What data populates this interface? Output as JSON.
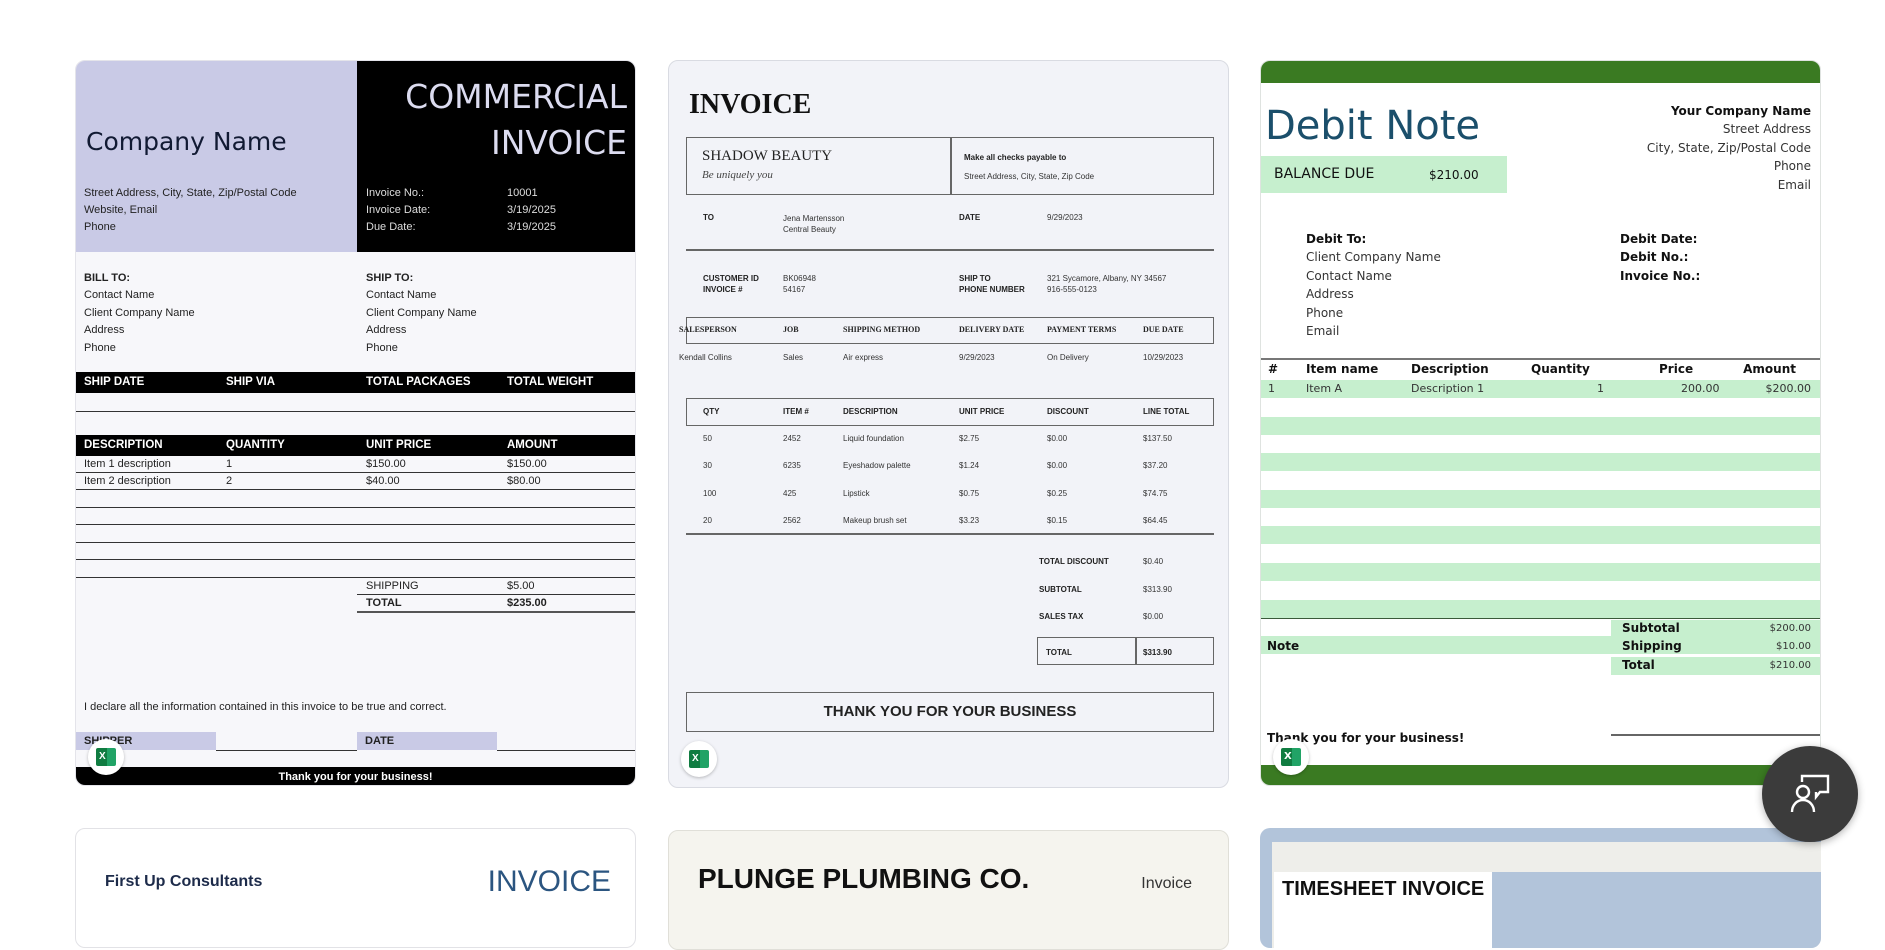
{
  "templates": [
    {
      "name": "commercial-invoice",
      "file_type": "excel-icon",
      "company": "Company Name",
      "title_line1": "COMMERCIAL",
      "title_line2": "INVOICE",
      "address": [
        "Street Address, City, State, Zip/Postal Code",
        "Website, Email",
        "Phone"
      ],
      "meta_labels": [
        "Invoice No.:",
        "Invoice Date:",
        "Due Date:"
      ],
      "meta_values": [
        "10001",
        "3/19/2025",
        "3/19/2025"
      ],
      "bill_to": {
        "heading": "BILL TO:",
        "lines": [
          "Contact Name",
          "Client Company Name",
          "Address",
          "Phone"
        ]
      },
      "ship_to": {
        "heading": "SHIP TO:",
        "lines": [
          "Contact Name",
          "Client Company Name",
          "Address",
          "Phone"
        ]
      },
      "ship_headers": [
        "SHIP DATE",
        "SHIP VIA",
        "TOTAL PACKAGES",
        "TOTAL WEIGHT"
      ],
      "item_headers": [
        "DESCRIPTION",
        "QUANTITY",
        "UNIT PRICE",
        "AMOUNT"
      ],
      "items": [
        [
          "Item 1 description",
          "1",
          "$150.00",
          "$150.00"
        ],
        [
          "Item 2 description",
          "2",
          "$40.00",
          "$80.00"
        ]
      ],
      "shipping_label": "SHIPPING",
      "shipping": "$5.00",
      "total_label": "TOTAL",
      "total": "$235.00",
      "declaration": "I declare all the information contained in this invoice to be true and correct.",
      "shipper_label": "SHIPPER",
      "date_label": "DATE",
      "footer": "Thank you for your business!"
    },
    {
      "name": "shadow-beauty-invoice",
      "file_type": "excel-icon",
      "title": "INVOICE",
      "company": "SHADOW BEAUTY",
      "tagline": "Be uniquely you",
      "checks_label": "Make all checks payable to",
      "checks_address": "Street Address, City, State, Zip Code",
      "to_label": "TO",
      "to_lines": [
        "Jena Martensson",
        "Central Beauty"
      ],
      "date_label": "DATE",
      "date": "9/29/2023",
      "cust_labels": [
        "CUSTOMER ID",
        "INVOICE #"
      ],
      "cust_values": [
        "BK06948",
        "54167"
      ],
      "ship_labels": [
        "SHIP TO",
        "PHONE NUMBER"
      ],
      "ship_values": [
        "321 Sycamore, Albany, NY 34567",
        "916-555-0123"
      ],
      "job_headers": [
        "SALESPERSON",
        "JOB",
        "SHIPPING METHOD",
        "DELIVERY DATE",
        "PAYMENT TERMS",
        "DUE DATE"
      ],
      "job_values": [
        "Kendall Collins",
        "Sales",
        "Air express",
        "9/29/2023",
        "On Delivery",
        "10/29/2023"
      ],
      "item_headers": [
        "QTY",
        "ITEM #",
        "DESCRIPTION",
        "UNIT PRICE",
        "DISCOUNT",
        "LINE TOTAL"
      ],
      "items": [
        [
          "50",
          "2452",
          "Liquid foundation",
          "$2.75",
          "$0.00",
          "$137.50"
        ],
        [
          "30",
          "6235",
          "Eyeshadow palette",
          "$1.24",
          "$0.00",
          "$37.20"
        ],
        [
          "100",
          "425",
          "Lipstick",
          "$0.75",
          "$0.25",
          "$74.75"
        ],
        [
          "20",
          "2562",
          "Makeup brush set",
          "$3.23",
          "$0.15",
          "$64.45"
        ]
      ],
      "totals": [
        [
          "TOTAL DISCOUNT",
          "$0.40"
        ],
        [
          "SUBTOTAL",
          "$313.90"
        ],
        [
          "SALES TAX",
          "$0.00"
        ]
      ],
      "total_label": "TOTAL",
      "total": "$313.90",
      "footer": "THANK YOU FOR YOUR BUSINESS"
    },
    {
      "name": "debit-note",
      "file_type": "excel-icon",
      "title": "Debit Note",
      "balance_label": "BALANCE DUE",
      "balance": "$210.00",
      "company_lines": [
        "Your Company Name",
        "Street Address",
        "City, State, Zip/Postal Code",
        "Phone",
        "Email"
      ],
      "debit_to_heading": "Debit To:",
      "debit_to_lines": [
        "Client Company Name",
        "Contact Name",
        "Address",
        "Phone",
        "Email"
      ],
      "meta_labels": [
        "Debit Date:",
        "Debit No.:",
        "Invoice No.:"
      ],
      "item_headers": [
        "#",
        "Item name",
        "Description",
        "Quantity",
        "Price",
        "Amount"
      ],
      "items": [
        [
          "1",
          "Item A",
          "Description 1",
          "1",
          "200.00",
          "$200.00"
        ]
      ],
      "note_label": "Note",
      "totals": [
        [
          "Subtotal",
          "$200.00"
        ],
        [
          "Shipping",
          "$10.00"
        ],
        [
          "Total",
          "$210.00"
        ]
      ],
      "footer": "Thank you for your business!"
    },
    {
      "name": "first-up-consultants",
      "company": "First Up Consultants",
      "title": "INVOICE"
    },
    {
      "name": "plunge-plumbing",
      "company": "PLUNGE PLUMBING CO.",
      "title": "Invoice"
    },
    {
      "name": "timesheet-invoice",
      "title": "TIMESHEET INVOICE"
    }
  ],
  "colors": {
    "accent_lavender": "#c9cae6",
    "debit_green": "#3a7a22",
    "stripe_green": "#c6efce",
    "debit_title": "#1b4f6b",
    "fab": "#3b3b3b"
  },
  "fab": {
    "icon": "feedback-person-icon"
  }
}
